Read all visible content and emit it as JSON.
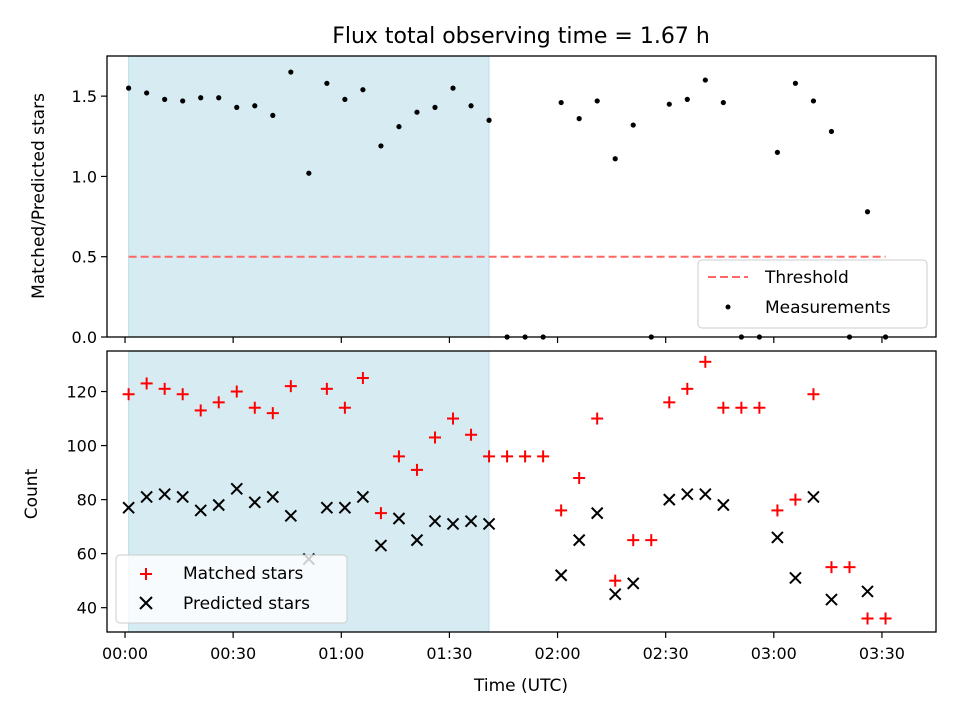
{
  "chart_data": [
    {
      "type": "scatter",
      "title": "Flux total observing time = 1.67 h",
      "xlabel": "",
      "ylabel": "Matched/Predicted stars",
      "xlim": [
        -5,
        225
      ],
      "ylim": [
        0,
        1.75
      ],
      "yticks": [
        0.0,
        0.5,
        1.0,
        1.5
      ],
      "ytick_labels": [
        "0.0",
        "0.5",
        "1.0",
        "1.5"
      ],
      "shaded_region": {
        "x_start": 1,
        "x_end": 101,
        "color": "#add8e6"
      },
      "threshold": {
        "label": "Threshold",
        "value": 0.5,
        "x_start": 1,
        "x_end": 211,
        "color": "#ff6666"
      },
      "series": [
        {
          "name": "Measurements",
          "color": "#000000",
          "x": [
            1,
            6,
            11,
            16,
            21,
            26,
            31,
            36,
            41,
            46,
            51,
            56,
            61,
            66,
            71,
            76,
            81,
            86,
            91,
            96,
            101,
            106,
            111,
            116,
            121,
            126,
            131,
            136,
            141,
            146,
            151,
            156,
            161,
            166,
            171,
            176,
            181,
            186,
            191,
            196,
            201,
            206,
            211
          ],
          "y": [
            1.55,
            1.52,
            1.48,
            1.47,
            1.49,
            1.49,
            1.43,
            1.44,
            1.38,
            1.65,
            1.02,
            1.58,
            1.48,
            1.54,
            1.19,
            1.31,
            1.4,
            1.43,
            1.55,
            1.44,
            1.35,
            0.0,
            0.0,
            0.0,
            1.46,
            1.36,
            1.47,
            1.11,
            1.32,
            0.0,
            1.45,
            1.48,
            1.6,
            1.46,
            0.0,
            0.0,
            1.15,
            1.58,
            1.47,
            1.28,
            0.0,
            0.78,
            0.0
          ]
        }
      ],
      "legend": {
        "position": "lower right",
        "entries": [
          "Threshold",
          "Measurements"
        ]
      }
    },
    {
      "type": "scatter",
      "title": "",
      "xlabel": "Time (UTC)",
      "ylabel": "Count",
      "xlim": [
        -5,
        225
      ],
      "ylim": [
        31,
        135
      ],
      "xticks": [
        0,
        30,
        60,
        90,
        120,
        150,
        180,
        210
      ],
      "xtick_labels": [
        "00:00",
        "00:30",
        "01:00",
        "01:30",
        "02:00",
        "02:30",
        "03:00",
        "03:30"
      ],
      "yticks": [
        40,
        60,
        80,
        100,
        120
      ],
      "ytick_labels": [
        "40",
        "60",
        "80",
        "100",
        "120"
      ],
      "shaded_region": {
        "x_start": 1,
        "x_end": 101,
        "color": "#add8e6"
      },
      "series": [
        {
          "name": "Matched stars",
          "marker": "+",
          "color": "#ff0000",
          "x": [
            1,
            6,
            11,
            16,
            21,
            26,
            31,
            36,
            41,
            46,
            56,
            61,
            66,
            71,
            76,
            81,
            86,
            91,
            96,
            101,
            106,
            111,
            116,
            121,
            126,
            131,
            136,
            141,
            146,
            151,
            156,
            161,
            166,
            171,
            176,
            181,
            186,
            191,
            196,
            201,
            206,
            211
          ],
          "y": [
            119,
            123,
            121,
            119,
            113,
            116,
            120,
            114,
            112,
            122,
            121,
            114,
            125,
            75,
            96,
            91,
            103,
            110,
            104,
            96,
            96,
            96,
            96,
            76,
            88,
            110,
            50,
            65,
            65,
            116,
            121,
            131,
            114,
            114,
            114,
            76,
            80,
            119,
            55,
            55,
            36,
            36
          ]
        },
        {
          "name": "Predicted stars",
          "marker": "x",
          "color": "#000000",
          "x": [
            1,
            6,
            11,
            16,
            21,
            26,
            31,
            36,
            41,
            46,
            51,
            56,
            61,
            66,
            71,
            76,
            81,
            86,
            91,
            96,
            101,
            121,
            126,
            131,
            136,
            141,
            151,
            156,
            161,
            166,
            181,
            186,
            191,
            196,
            206
          ],
          "y": [
            77,
            81,
            82,
            81,
            76,
            78,
            84,
            79,
            81,
            74,
            58,
            77,
            77,
            81,
            63,
            73,
            65,
            72,
            71,
            72,
            71,
            52,
            65,
            75,
            45,
            49,
            80,
            82,
            82,
            78,
            66,
            51,
            81,
            43,
            46
          ]
        }
      ],
      "legend": {
        "position": "lower left",
        "entries": [
          "Matched stars",
          "Predicted stars"
        ]
      }
    }
  ]
}
